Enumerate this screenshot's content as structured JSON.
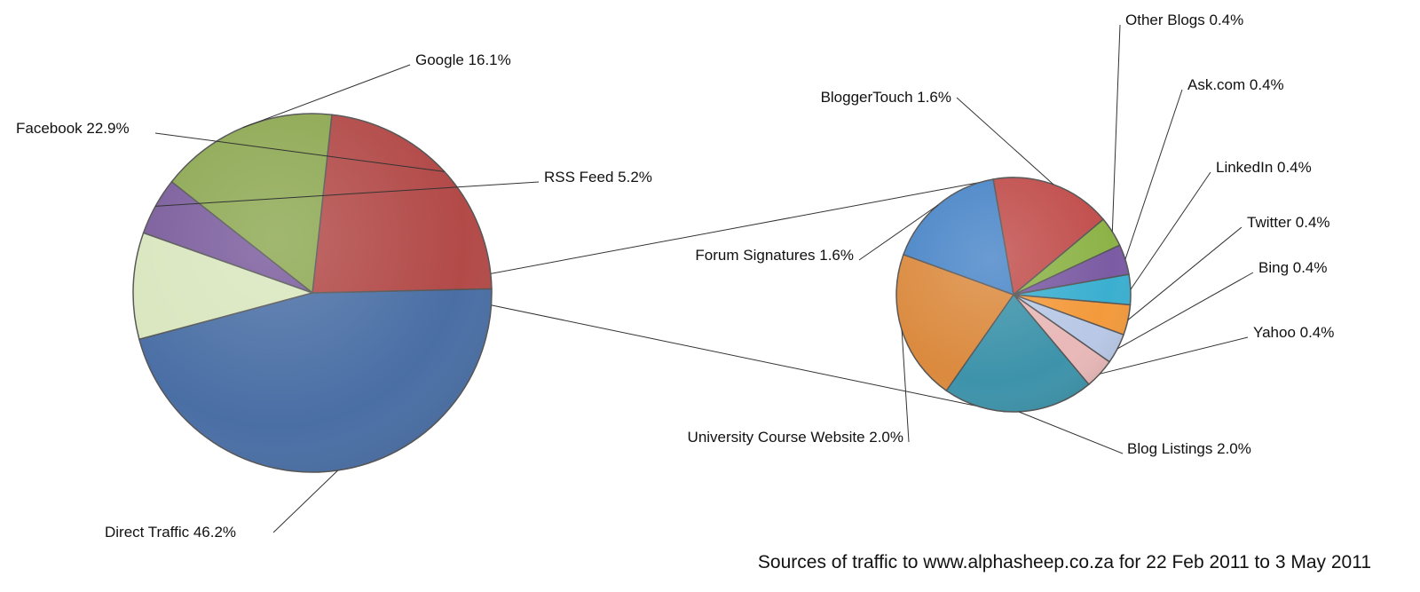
{
  "chart_data": {
    "type": "pie",
    "subtype": "pie-of-pie",
    "title": "Sources of traffic to www.alphasheep.co.za for 22 Feb 2011 to 3 May 2011",
    "main_pie": {
      "slices": [
        {
          "label": "Direct Traffic 46.2%",
          "value": 46.2,
          "color": "#4A6FA5"
        },
        {
          "label": "Facebook 22.9%",
          "value": 22.9,
          "color": "#B24A48"
        },
        {
          "label": "Google 16.1%",
          "value": 16.1,
          "color": "#8DA852"
        },
        {
          "label": "RSS Feed 5.2%",
          "value": 5.2,
          "color": "#7A5C9C"
        },
        {
          "label": "",
          "value": 9.6,
          "color": "#D9E6BE",
          "is_other": true
        }
      ]
    },
    "secondary_pie": {
      "slices": [
        {
          "label": "Blog Listings 2.0%",
          "value": 2.0,
          "color": "#3D93AA"
        },
        {
          "label": "University Course Website 2.0%",
          "value": 2.0,
          "color": "#DB8A3E"
        },
        {
          "label": "Forum Signatures 1.6%",
          "value": 1.6,
          "color": "#4A86C8"
        },
        {
          "label": "BloggerTouch 1.6%",
          "value": 1.6,
          "color": "#C14F4D"
        },
        {
          "label": "Other Blogs 0.4%",
          "value": 0.4,
          "color": "#8DB348"
        },
        {
          "label": "Ask.com 0.4%",
          "value": 0.4,
          "color": "#7B5BA3"
        },
        {
          "label": "LinkedIn 0.4%",
          "value": 0.4,
          "color": "#3BAFD0"
        },
        {
          "label": "Twitter 0.4%",
          "value": 0.4,
          "color": "#F39A3C"
        },
        {
          "label": "Bing 0.4%",
          "value": 0.4,
          "color": "#B8C8E6"
        },
        {
          "label": "Yahoo 0.4%",
          "value": 0.4,
          "color": "#E9B8B8"
        }
      ]
    }
  }
}
